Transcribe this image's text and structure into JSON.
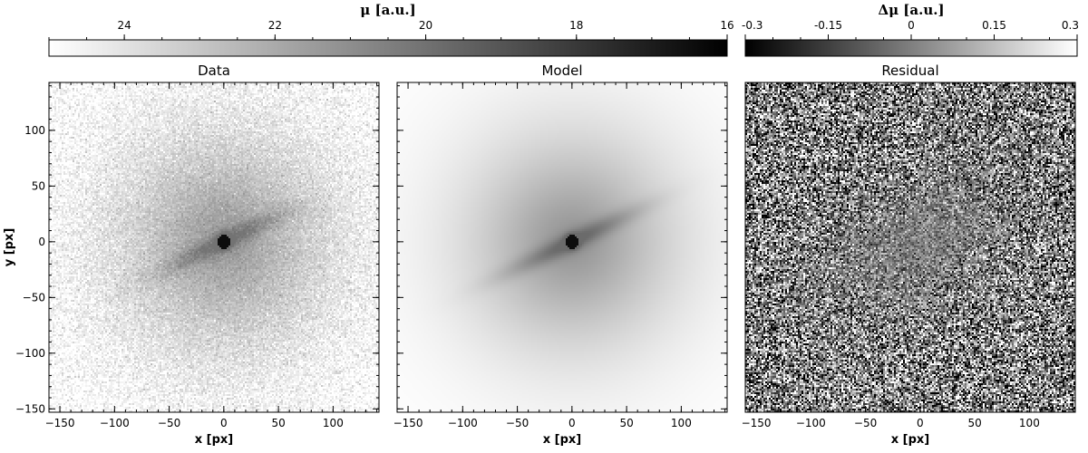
{
  "chart_data": [
    {
      "type": "heatmap",
      "title": "Data",
      "xlabel": "x [px]",
      "ylabel": "y [px]",
      "xlim": [
        -160,
        142
      ],
      "ylim": [
        -153,
        143
      ],
      "xticks": [
        -150,
        -100,
        -50,
        0,
        50,
        100
      ],
      "yticks": [
        -150,
        -100,
        -50,
        0,
        50,
        100
      ],
      "colormap": "gray",
      "description": "galaxy image: bright compact core at (0,0) with tilted elongated bar along ~25 deg, diffuse halo fading to background with pixel noise"
    },
    {
      "type": "heatmap",
      "title": "Model",
      "xlabel": "x [px]",
      "ylabel": "",
      "xlim": [
        -160,
        142
      ],
      "ylim": [
        -153,
        143
      ],
      "xticks": [
        -150,
        -100,
        -50,
        0,
        50,
        100
      ],
      "yticks": [
        -150,
        -100,
        -50,
        0,
        50,
        100
      ],
      "colormap": "gray",
      "description": "smooth model of the same galaxy: core at (0,0), tilted bar, smooth halo"
    },
    {
      "type": "heatmap",
      "title": "Residual",
      "xlabel": "x [px]",
      "ylabel": "",
      "xlim": [
        -160,
        142
      ],
      "ylim": [
        -153,
        143
      ],
      "xticks": [
        -150,
        -100,
        -50,
        0,
        50,
        100
      ],
      "yticks": [
        -150,
        -100,
        -50,
        0,
        50,
        100
      ],
      "colormap": "gray",
      "description": "residual noise map, reduced noise amplitude near the center"
    }
  ],
  "colorbars": [
    {
      "label": "μ [a.u.]",
      "range": [
        25,
        16
      ],
      "ticks": [
        24,
        22,
        20,
        18,
        16
      ],
      "tick_labels": [
        "24",
        "22",
        "20",
        "18",
        "16"
      ],
      "from_color": "#ffffff",
      "to_color": "#000000"
    },
    {
      "label": "Δμ [a.u.]",
      "range": [
        -0.3,
        0.3
      ],
      "ticks": [
        -0.3,
        -0.15,
        0,
        0.15,
        0.3
      ],
      "tick_labels": [
        "-0.3",
        "-0.15",
        "0",
        "0.15",
        "0.3"
      ],
      "from_color": "#000000",
      "to_color": "#ffffff"
    }
  ]
}
